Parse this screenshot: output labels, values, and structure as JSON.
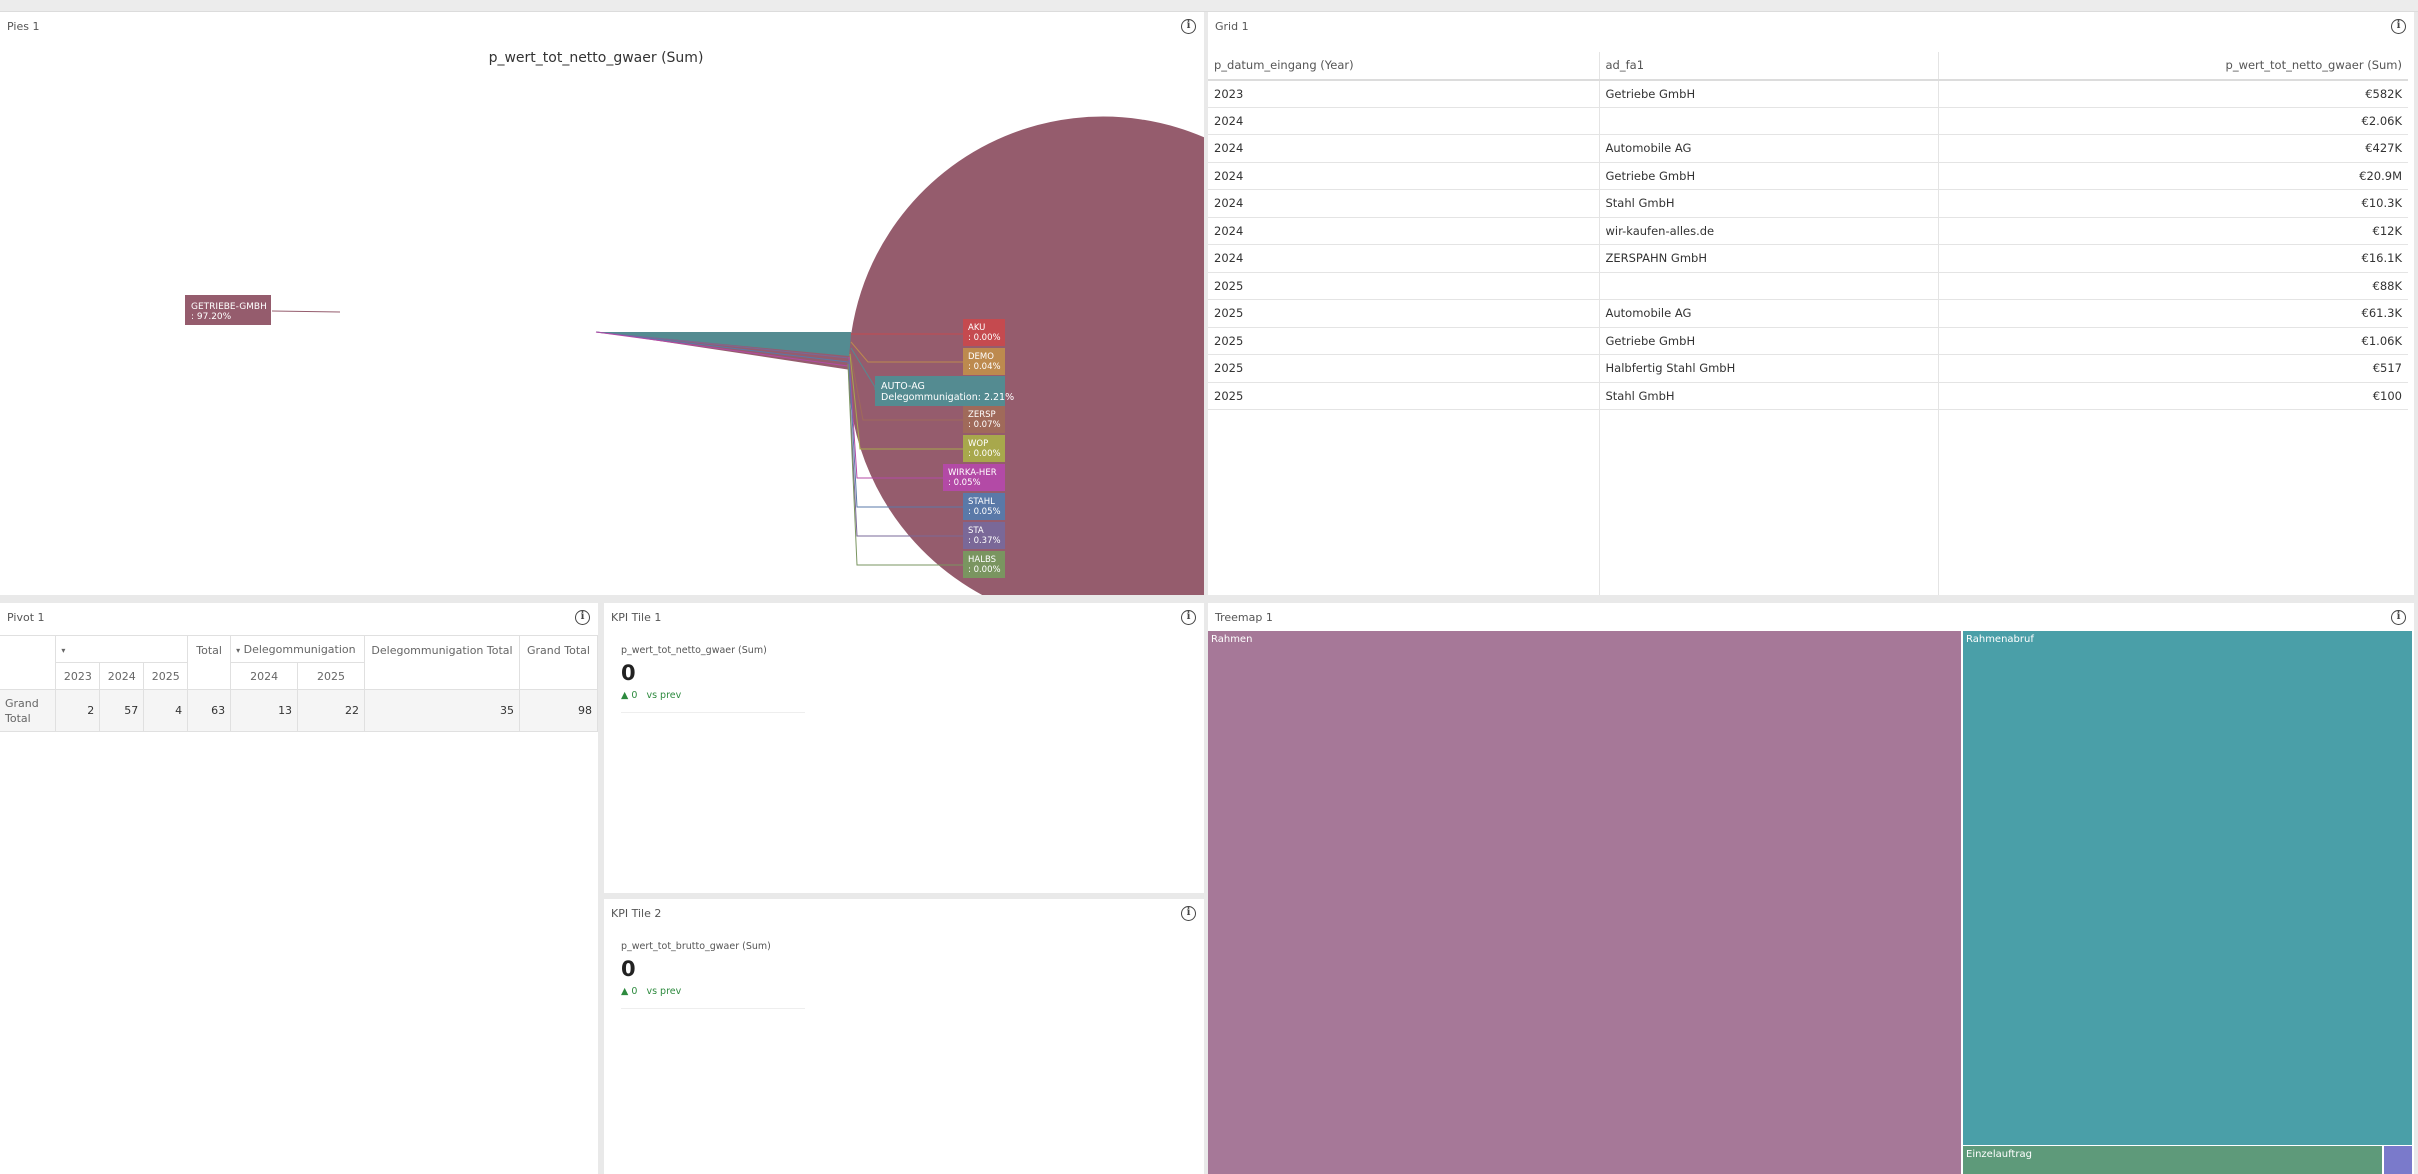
{
  "pies": {
    "title": "Pies 1",
    "chart_title": "p_wert_tot_netto_gwaer (Sum)",
    "big_label": "GETRIEBE-GMBH\n: 97.20%",
    "side_labels": [
      {
        "name": "AKU",
        "pct": ": 0.00%",
        "color": "#c54a4f"
      },
      {
        "name": "DEMO",
        "pct": ": 0.04%",
        "color": "#bd8a4e"
      },
      {
        "name": "ZERSP",
        "pct": ": 0.07%",
        "color": "#a06a5a"
      },
      {
        "name": "WOP",
        "pct": ": 0.00%",
        "color": "#a8a84c"
      },
      {
        "name": "WIRKA-HER",
        "pct": ": 0.05%",
        "color": "#b34aa6"
      },
      {
        "name": "STAHL",
        "pct": ": 0.05%",
        "color": "#5a79a8"
      },
      {
        "name": "STA",
        "pct": ": 0.37%",
        "color": "#7a6898"
      },
      {
        "name": "HALBS",
        "pct": ": 0.00%",
        "color": "#7a9560"
      }
    ],
    "autoag_label": "AUTO-AG\nDelegommunigation: 2.21%",
    "colors": {
      "main": "#955c6d",
      "autoag": "#548b91"
    }
  },
  "grid": {
    "title": "Grid 1",
    "headers": [
      "p_datum_eingang (Year)",
      "ad_fa1",
      "p_wert_tot_netto_gwaer (Sum)"
    ],
    "rows": [
      [
        "2023",
        "Getriebe GmbH",
        "€582K"
      ],
      [
        "2024",
        "",
        "€2.06K"
      ],
      [
        "2024",
        "Automobile AG",
        "€427K"
      ],
      [
        "2024",
        "Getriebe GmbH",
        "€20.9M"
      ],
      [
        "2024",
        "Stahl GmbH",
        "€10.3K"
      ],
      [
        "2024",
        "wir-kaufen-alles.de",
        "€12K"
      ],
      [
        "2024",
        "ZERSPAHN GmbH",
        "€16.1K"
      ],
      [
        "2025",
        "",
        "€88K"
      ],
      [
        "2025",
        "Automobile AG",
        "€61.3K"
      ],
      [
        "2025",
        "Getriebe GmbH",
        "€1.06K"
      ],
      [
        "2025",
        "Halbfertig Stahl GmbH",
        "€517"
      ],
      [
        "2025",
        "Stahl GmbH",
        "€100"
      ]
    ]
  },
  "pivot": {
    "title": "Pivot 1",
    "total_label": "Total",
    "group2": "Delegommunigation",
    "group2_total": "Delegommunigation Total",
    "grand_total": "Grand Total",
    "years1": [
      "2023",
      "2024",
      "2025"
    ],
    "years2": [
      "2024",
      "2025"
    ],
    "row_label": "Grand Total",
    "values": [
      "2",
      "57",
      "4",
      "63",
      "13",
      "22",
      "35",
      "98"
    ]
  },
  "kpi1": {
    "title": "KPI Tile 1",
    "label": "p_wert_tot_netto_gwaer (Sum)",
    "value": "0",
    "delta_val": "0",
    "delta_text": "vs prev"
  },
  "kpi2": {
    "title": "KPI Tile 2",
    "label": "p_wert_tot_brutto_gwaer (Sum)",
    "value": "0",
    "delta_val": "0",
    "delta_text": "vs prev"
  },
  "treemap": {
    "title": "Treemap 1",
    "cells": [
      {
        "label": "Rahmen",
        "color": "#a67898"
      },
      {
        "label": "Rahmenabruf",
        "color": "#4a9fa8"
      },
      {
        "label": "Einzelauftrag",
        "color": "#5e9a7a"
      },
      {
        "label": "",
        "color": "#7a7acb"
      }
    ]
  },
  "info_icon": "info-icon"
}
